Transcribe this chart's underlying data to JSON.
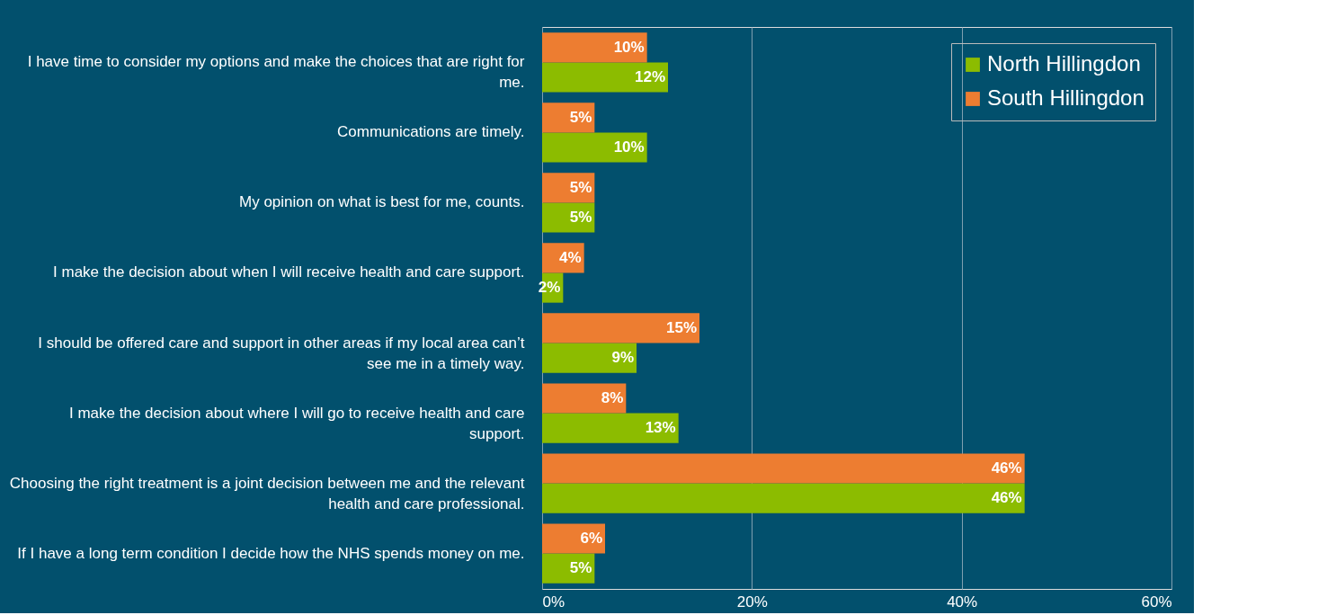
{
  "chart_data": {
    "type": "bar",
    "orientation": "horizontal",
    "categories": [
      "I have time to consider my options and make the choices that are right for me.",
      "Communications are timely.",
      "My opinion on what is best for me, counts.",
      "I make the decision about when I will receive health and care support.",
      "I should be offered care and support in other areas if my local area can’t see me in a timely way.",
      "I make the decision about where I will go to receive health and care support.",
      "Choosing the right treatment is a joint decision between me and the relevant health and care professional.",
      "If I have a long term condition I decide how the NHS spends money on me."
    ],
    "series": [
      {
        "name": "North Hillingdon",
        "color": "#8cbc00",
        "values": [
          12,
          10,
          5,
          2,
          9,
          13,
          46,
          5
        ],
        "value_labels": [
          "12%",
          "10%",
          "5%",
          "2%",
          "9%",
          "13%",
          "46%",
          "5%"
        ]
      },
      {
        "name": "South Hillingdon",
        "color": "#ed7d31",
        "values": [
          10,
          5,
          5,
          4,
          15,
          8,
          46,
          6
        ],
        "value_labels": [
          "10%",
          "5%",
          "5%",
          "4%",
          "15%",
          "8%",
          "46%",
          "6%"
        ]
      }
    ],
    "xlim": [
      0,
      60
    ],
    "xticks": [
      {
        "value": 0,
        "label": "0%"
      },
      {
        "value": 20,
        "label": "20%"
      },
      {
        "value": 40,
        "label": "40%"
      },
      {
        "value": 60,
        "label": "60%"
      }
    ],
    "grid": "x",
    "legend": "top right"
  }
}
